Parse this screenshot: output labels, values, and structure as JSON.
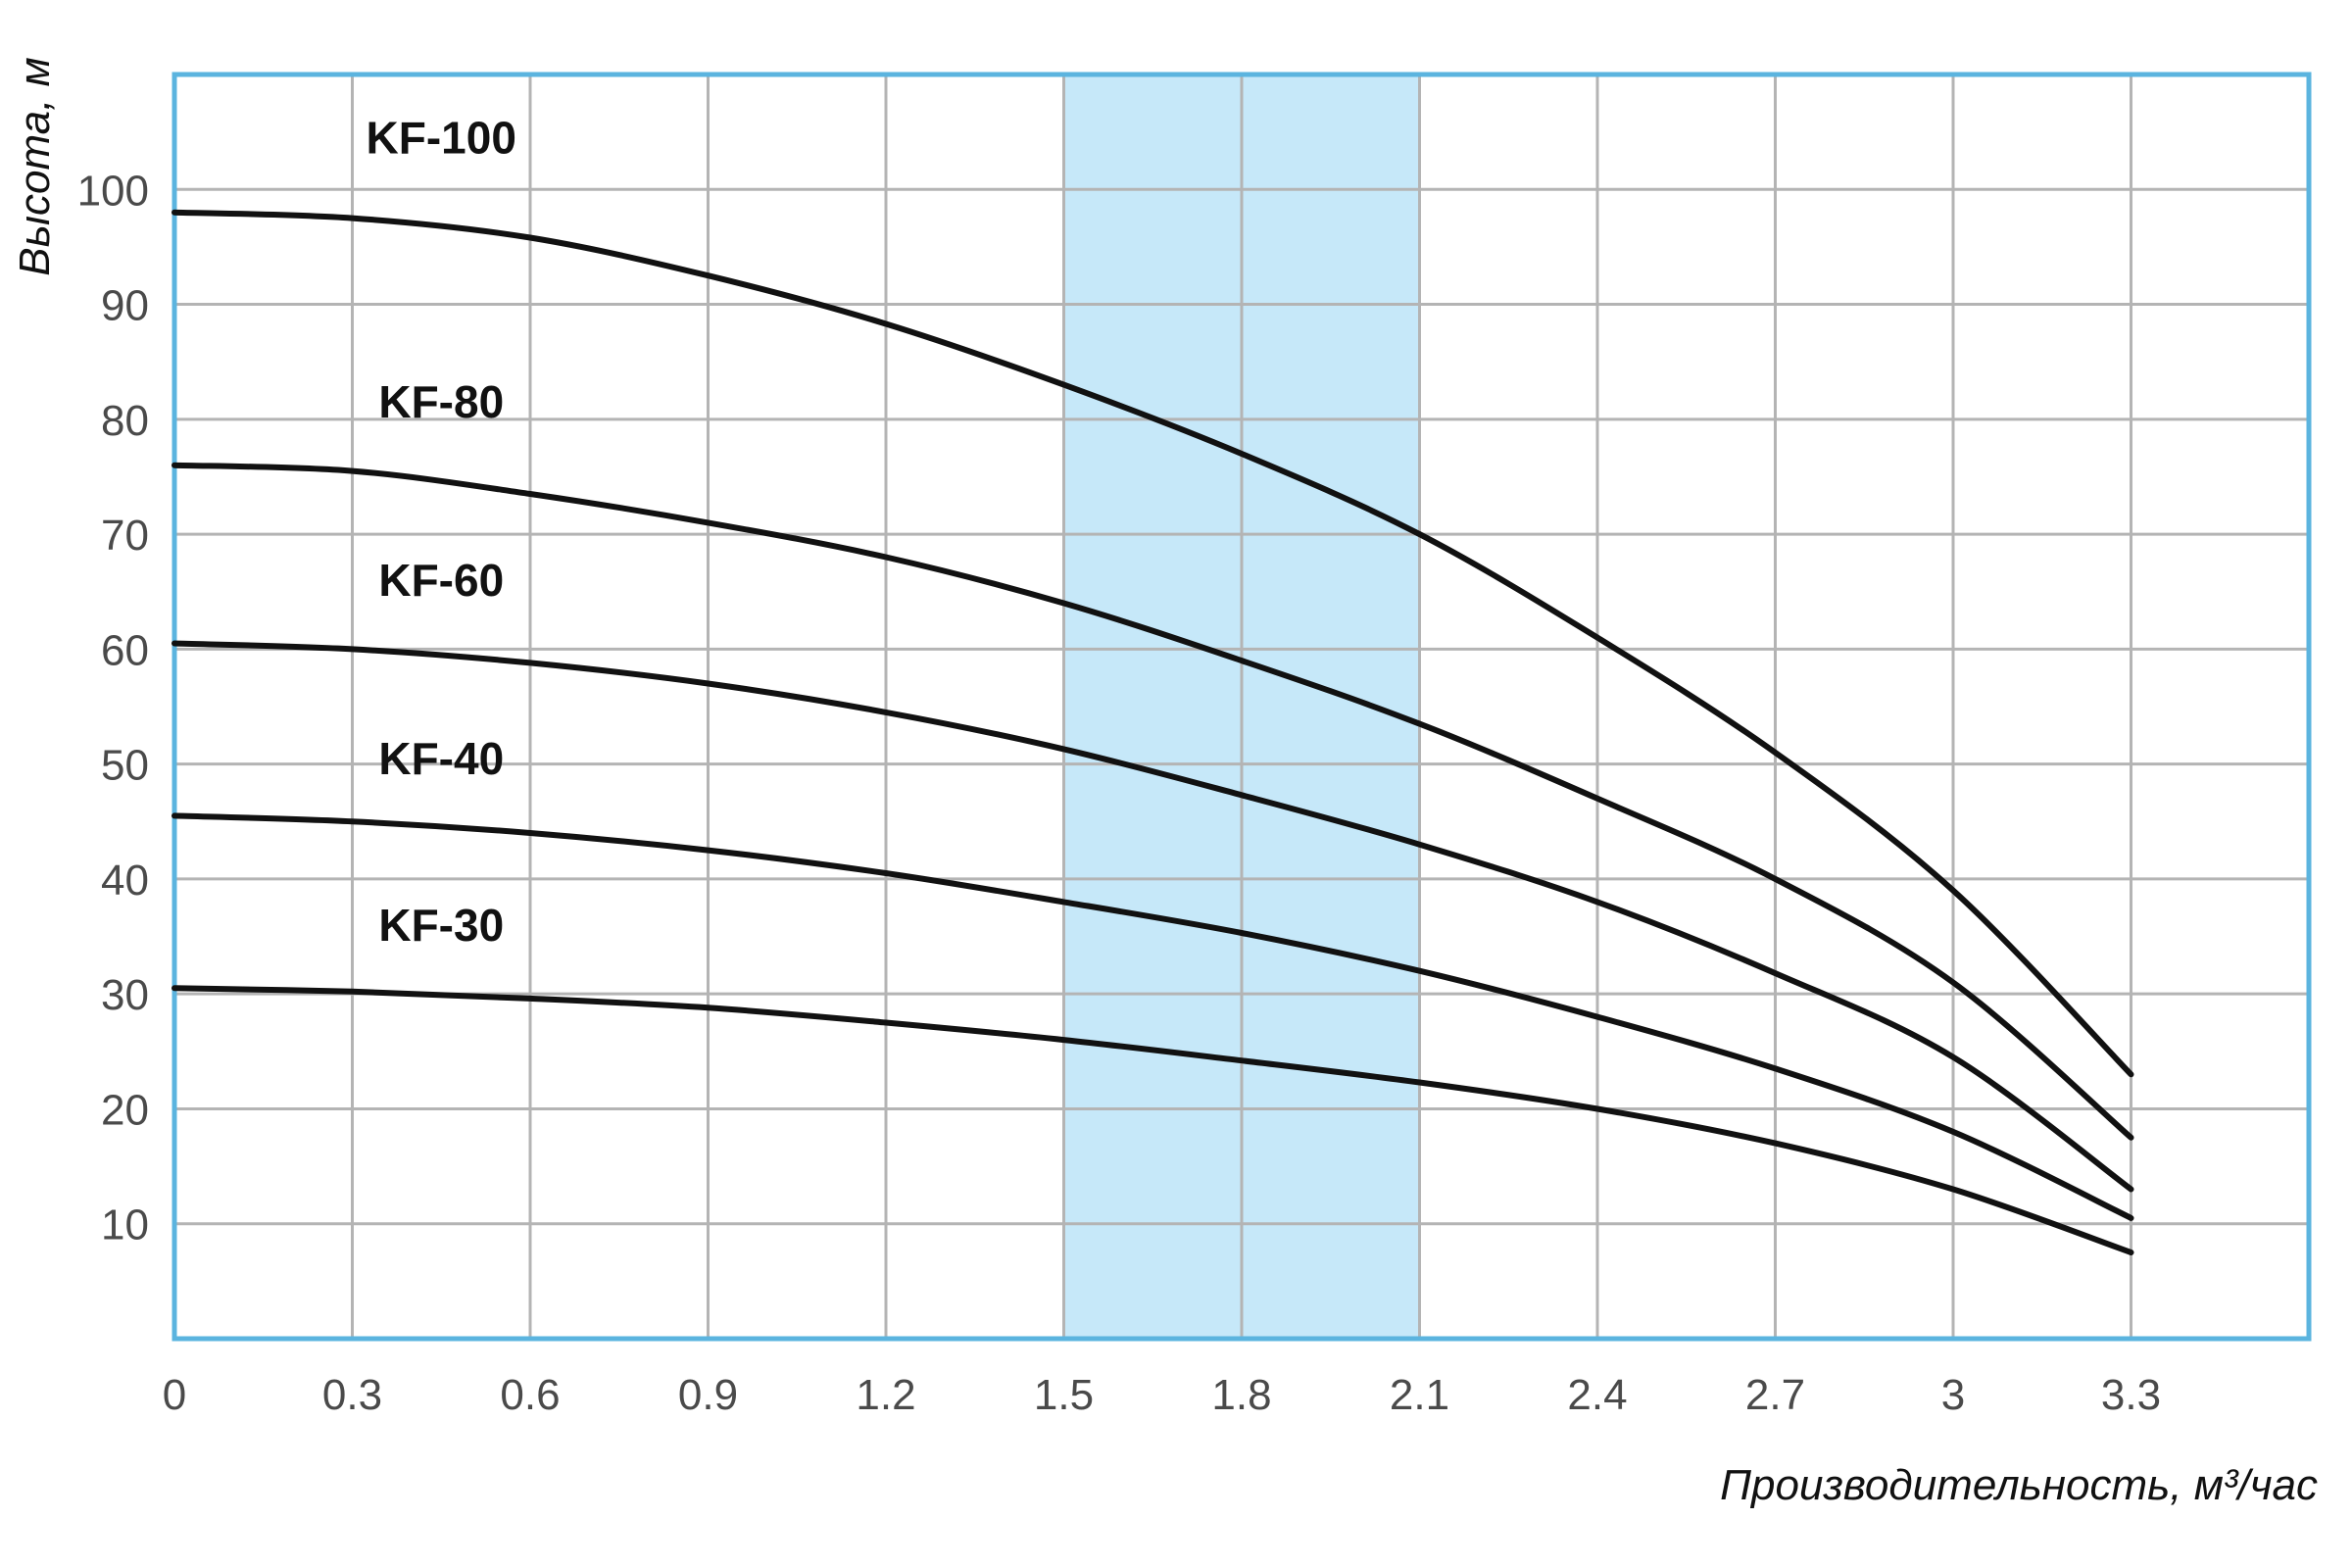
{
  "chart_data": {
    "type": "line",
    "title": "",
    "xlabel": "Производительность, м³/час",
    "ylabel": "Высота, м",
    "xlim": [
      0,
      3.6
    ],
    "ylim": [
      0,
      110
    ],
    "x_ticks": [
      0,
      0.3,
      0.6,
      0.9,
      1.2,
      1.5,
      1.8,
      2.1,
      2.4,
      2.7,
      3,
      3.3
    ],
    "x_tick_labels": [
      "0",
      "0.3",
      "0.6",
      "0.9",
      "1.2",
      "1.5",
      "1.8",
      "2.1",
      "2.4",
      "2.7",
      "3",
      "3.3"
    ],
    "y_ticks": [
      10,
      20,
      30,
      40,
      50,
      60,
      70,
      80,
      90,
      100
    ],
    "y_tick_labels": [
      "10",
      "20",
      "30",
      "40",
      "50",
      "60",
      "70",
      "80",
      "90",
      "100"
    ],
    "grid": true,
    "highlight_band": {
      "x_from": 1.5,
      "x_to": 2.1,
      "color": "#c6e8f9"
    },
    "frame_color": "#5bb4df",
    "grid_color": "#b4b4b4",
    "curve_color": "#111111",
    "series": [
      {
        "name": "KF-100",
        "label_x": 0.45,
        "label_y": 104.5,
        "x": [
          0,
          0.3,
          0.6,
          0.9,
          1.2,
          1.5,
          1.8,
          2.1,
          2.4,
          2.7,
          3,
          3.3
        ],
        "values": [
          98,
          97.5,
          95.8,
          92.5,
          88.3,
          83,
          77,
          70,
          61,
          51,
          39,
          23
        ]
      },
      {
        "name": "KF-80",
        "label_x": 0.45,
        "label_y": 81.5,
        "x": [
          0,
          0.3,
          0.6,
          0.9,
          1.2,
          1.5,
          1.8,
          2.1,
          2.4,
          2.7,
          3,
          3.3
        ],
        "values": [
          76,
          75.5,
          73.5,
          71,
          68,
          64,
          59,
          53.5,
          47,
          40,
          31,
          17.5
        ]
      },
      {
        "name": "KF-60",
        "label_x": 0.45,
        "label_y": 66,
        "x": [
          0,
          0.3,
          0.6,
          0.9,
          1.2,
          1.5,
          1.8,
          2.1,
          2.4,
          2.7,
          3,
          3.3
        ],
        "values": [
          60.5,
          60,
          58.8,
          57,
          54.5,
          51.3,
          47.3,
          43,
          38,
          31.8,
          24.5,
          13
        ]
      },
      {
        "name": "KF-40",
        "label_x": 0.45,
        "label_y": 50.5,
        "x": [
          0,
          0.3,
          0.6,
          0.9,
          1.2,
          1.5,
          1.8,
          2.1,
          2.4,
          2.7,
          3,
          3.3
        ],
        "values": [
          45.5,
          45,
          44,
          42.5,
          40.5,
          38,
          35.3,
          32,
          28,
          23.5,
          18,
          10.5
        ]
      },
      {
        "name": "KF-30",
        "label_x": 0.45,
        "label_y": 36,
        "x": [
          0,
          0.3,
          0.6,
          0.9,
          1.2,
          1.5,
          1.8,
          2.1,
          2.4,
          2.7,
          3,
          3.3
        ],
        "values": [
          30.5,
          30.2,
          29.6,
          28.8,
          27.5,
          26,
          24.2,
          22.3,
          20,
          17,
          13,
          7.5
        ]
      }
    ]
  }
}
